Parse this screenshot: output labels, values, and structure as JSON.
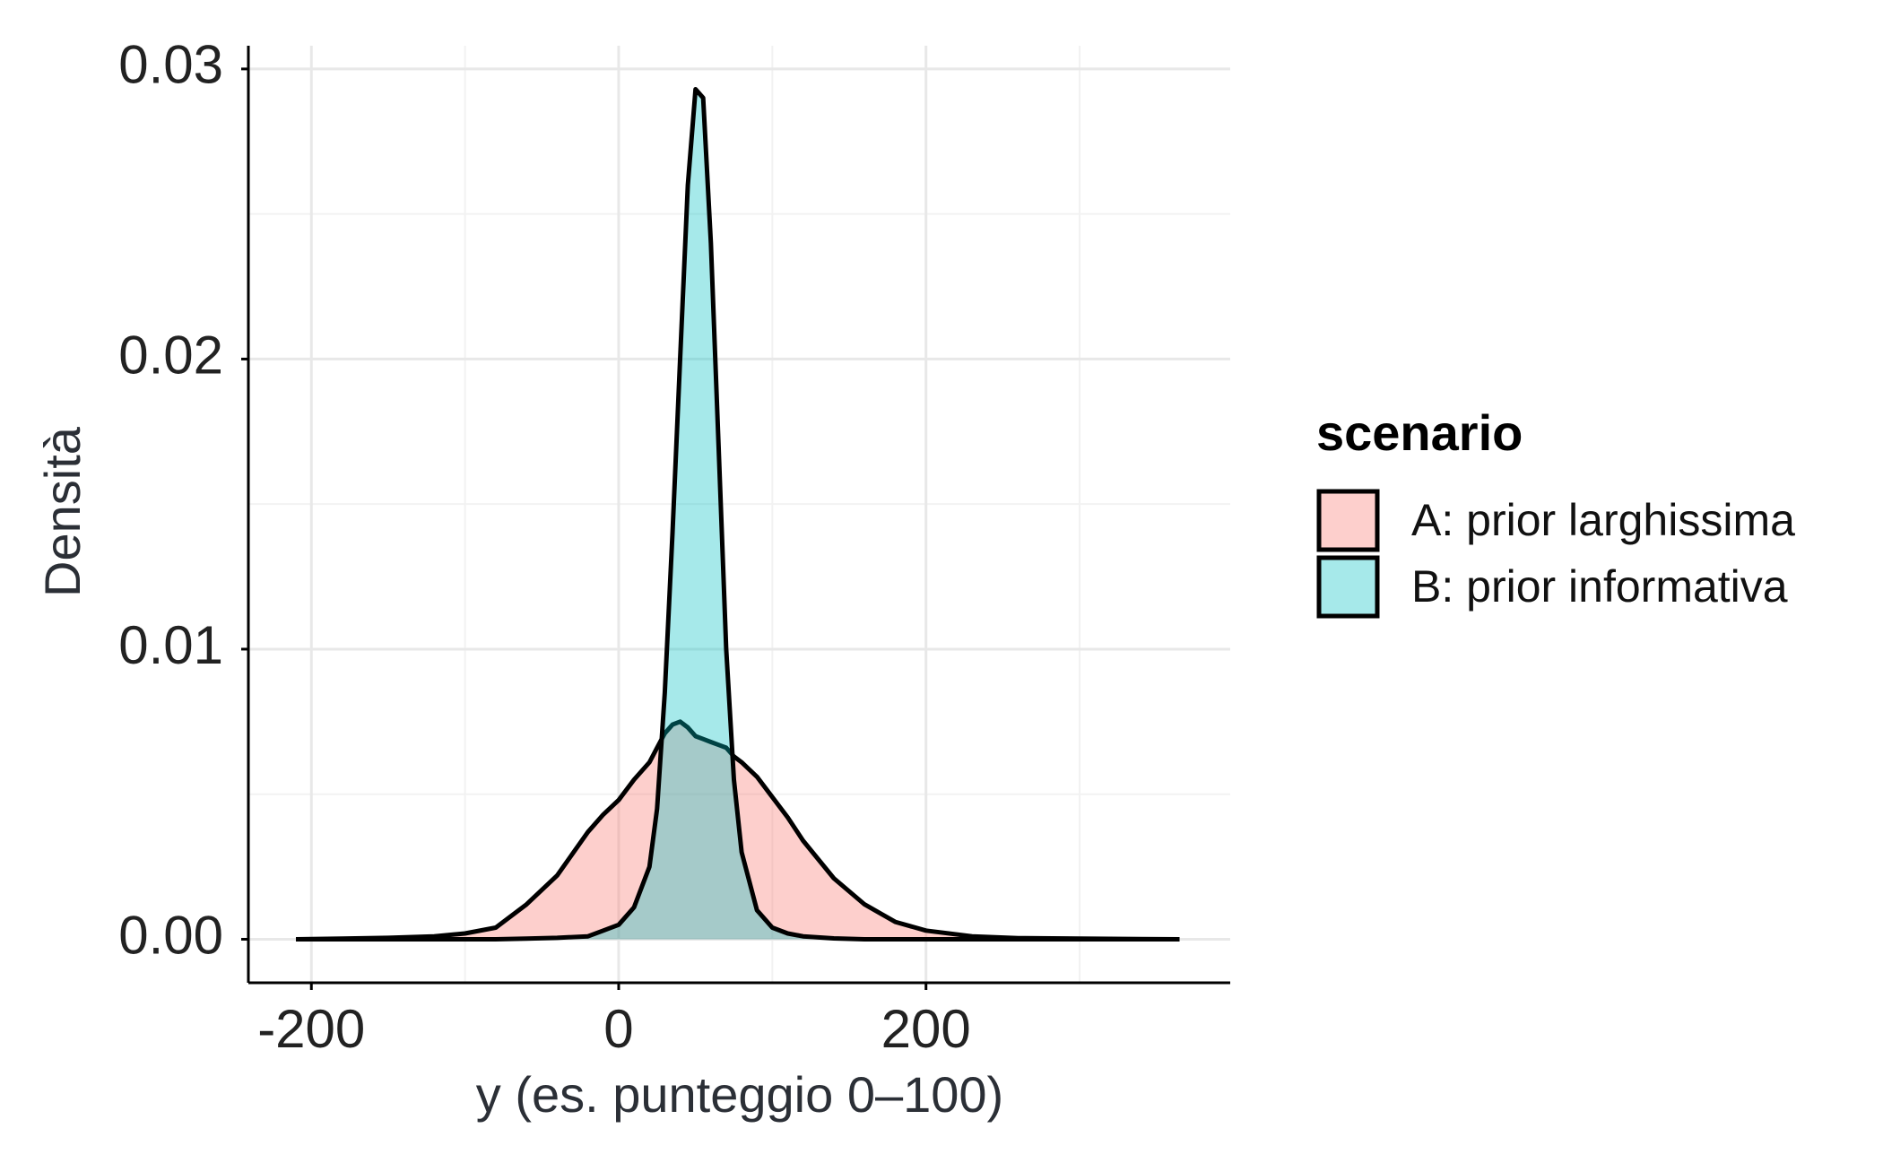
{
  "chart_data": {
    "type": "density",
    "x_label": "y (es. punteggio 0–100)",
    "y_label": "Densità",
    "legend_title": "scenario",
    "legend_position": "right",
    "grid": true,
    "x": [
      -210,
      -180,
      -150,
      -120,
      -100,
      -80,
      -60,
      -40,
      -20,
      -10,
      0,
      10,
      20,
      25,
      30,
      35,
      40,
      45,
      50,
      55,
      60,
      65,
      70,
      75,
      80,
      90,
      100,
      110,
      120,
      140,
      160,
      180,
      200,
      230,
      260,
      300,
      365
    ],
    "series": [
      {
        "name": "A: prior larghissima",
        "color": "#F8766D",
        "values": [
          0,
          2e-05,
          5e-05,
          0.0001,
          0.0002,
          0.0004,
          0.0012,
          0.0022,
          0.0037,
          0.0043,
          0.0048,
          0.0055,
          0.0061,
          0.0066,
          0.0071,
          0.0074,
          0.0075,
          0.0073,
          0.007,
          0.0069,
          0.0068,
          0.0067,
          0.0066,
          0.0063,
          0.0061,
          0.0056,
          0.0049,
          0.0042,
          0.0034,
          0.0021,
          0.0012,
          0.0006,
          0.0003,
          0.0001,
          4e-05,
          2e-05,
          0
        ]
      },
      {
        "name": "B: prior informativa",
        "color": "#00BFC4",
        "values": [
          0,
          0,
          0,
          0,
          0,
          0,
          2e-05,
          5e-05,
          0.0001,
          0.0003,
          0.0005,
          0.0011,
          0.0025,
          0.0045,
          0.0085,
          0.014,
          0.02,
          0.026,
          0.0293,
          0.029,
          0.024,
          0.017,
          0.01,
          0.0055,
          0.003,
          0.001,
          0.0004,
          0.0002,
          0.0001,
          3e-05,
          0,
          0,
          0,
          0,
          0,
          0,
          0
        ]
      }
    ],
    "xlim": [
      -241,
      398
    ],
    "ylim": [
      -0.0015,
      0.0308
    ],
    "xticks": [
      -200,
      0,
      200
    ],
    "yticks": [
      {
        "value": 0,
        "label": "0.00"
      },
      0.01,
      0.02,
      0.03
    ],
    "xminor": [
      -100,
      100,
      300
    ],
    "yminor": [
      0.005,
      0.015,
      0.025
    ]
  }
}
